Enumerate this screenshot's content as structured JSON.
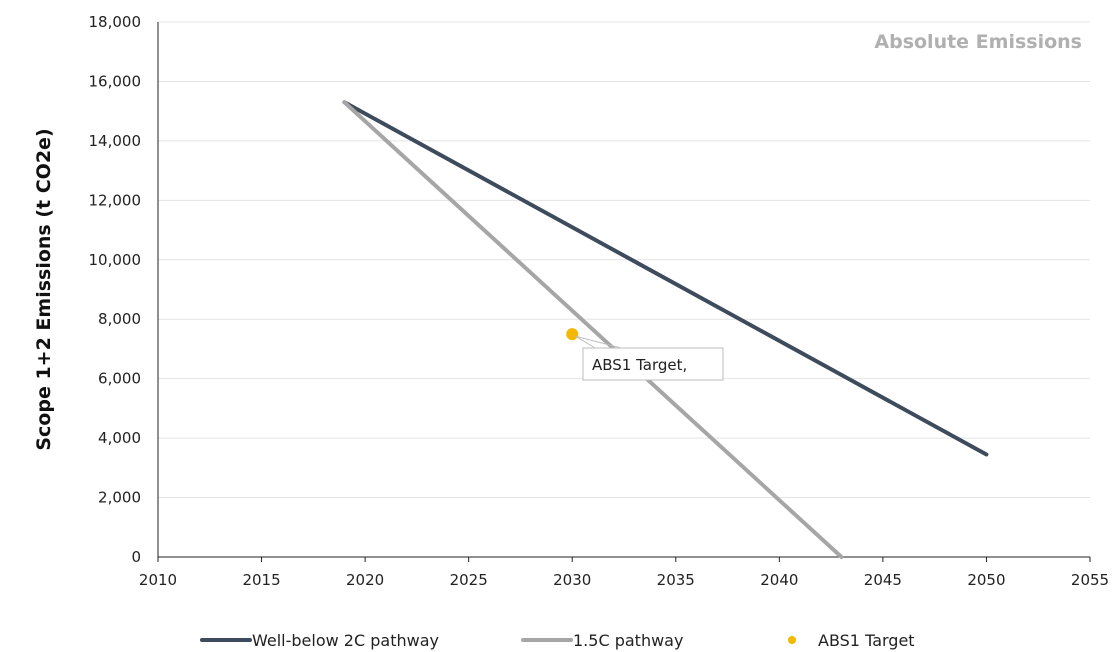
{
  "chart_data": {
    "type": "line",
    "title": "",
    "corner_label": "Absolute Emissions",
    "xlabel": "",
    "ylabel": "Scope 1+2 Emissions (t CO2e)",
    "xlim": [
      2010,
      2055
    ],
    "ylim": [
      0,
      18000
    ],
    "x_ticks": [
      2010,
      2015,
      2020,
      2025,
      2030,
      2035,
      2040,
      2045,
      2050,
      2055
    ],
    "y_ticks": [
      0,
      2000,
      4000,
      6000,
      8000,
      10000,
      12000,
      14000,
      16000,
      18000
    ],
    "x_tick_labels": [
      "2010",
      "2015",
      "2020",
      "2025",
      "2030",
      "2035",
      "2040",
      "2045",
      "2050",
      "2055"
    ],
    "y_tick_labels": [
      "0",
      "2,000",
      "4,000",
      "6,000",
      "8,000",
      "10,000",
      "12,000",
      "14,000",
      "16,000",
      "18,000"
    ],
    "grid": "horizontal",
    "legend_position": "bottom",
    "series": [
      {
        "name": "Well-below 2C pathway",
        "kind": "line",
        "color": "#3d4b5c",
        "points": [
          [
            2019,
            15300
          ],
          [
            2050,
            3450
          ]
        ]
      },
      {
        "name": "1.5C pathway",
        "kind": "line",
        "color": "#a6a6a6",
        "points": [
          [
            2019,
            15300
          ],
          [
            2043,
            0
          ]
        ]
      },
      {
        "name": "ABS1 Target",
        "kind": "scatter",
        "color": "#f5b800",
        "points": [
          [
            2030,
            7500
          ]
        ]
      }
    ],
    "annotations": [
      {
        "text": "ABS1 Target,",
        "target_series": "ABS1 Target",
        "x": 2030,
        "y": 7500
      }
    ]
  }
}
